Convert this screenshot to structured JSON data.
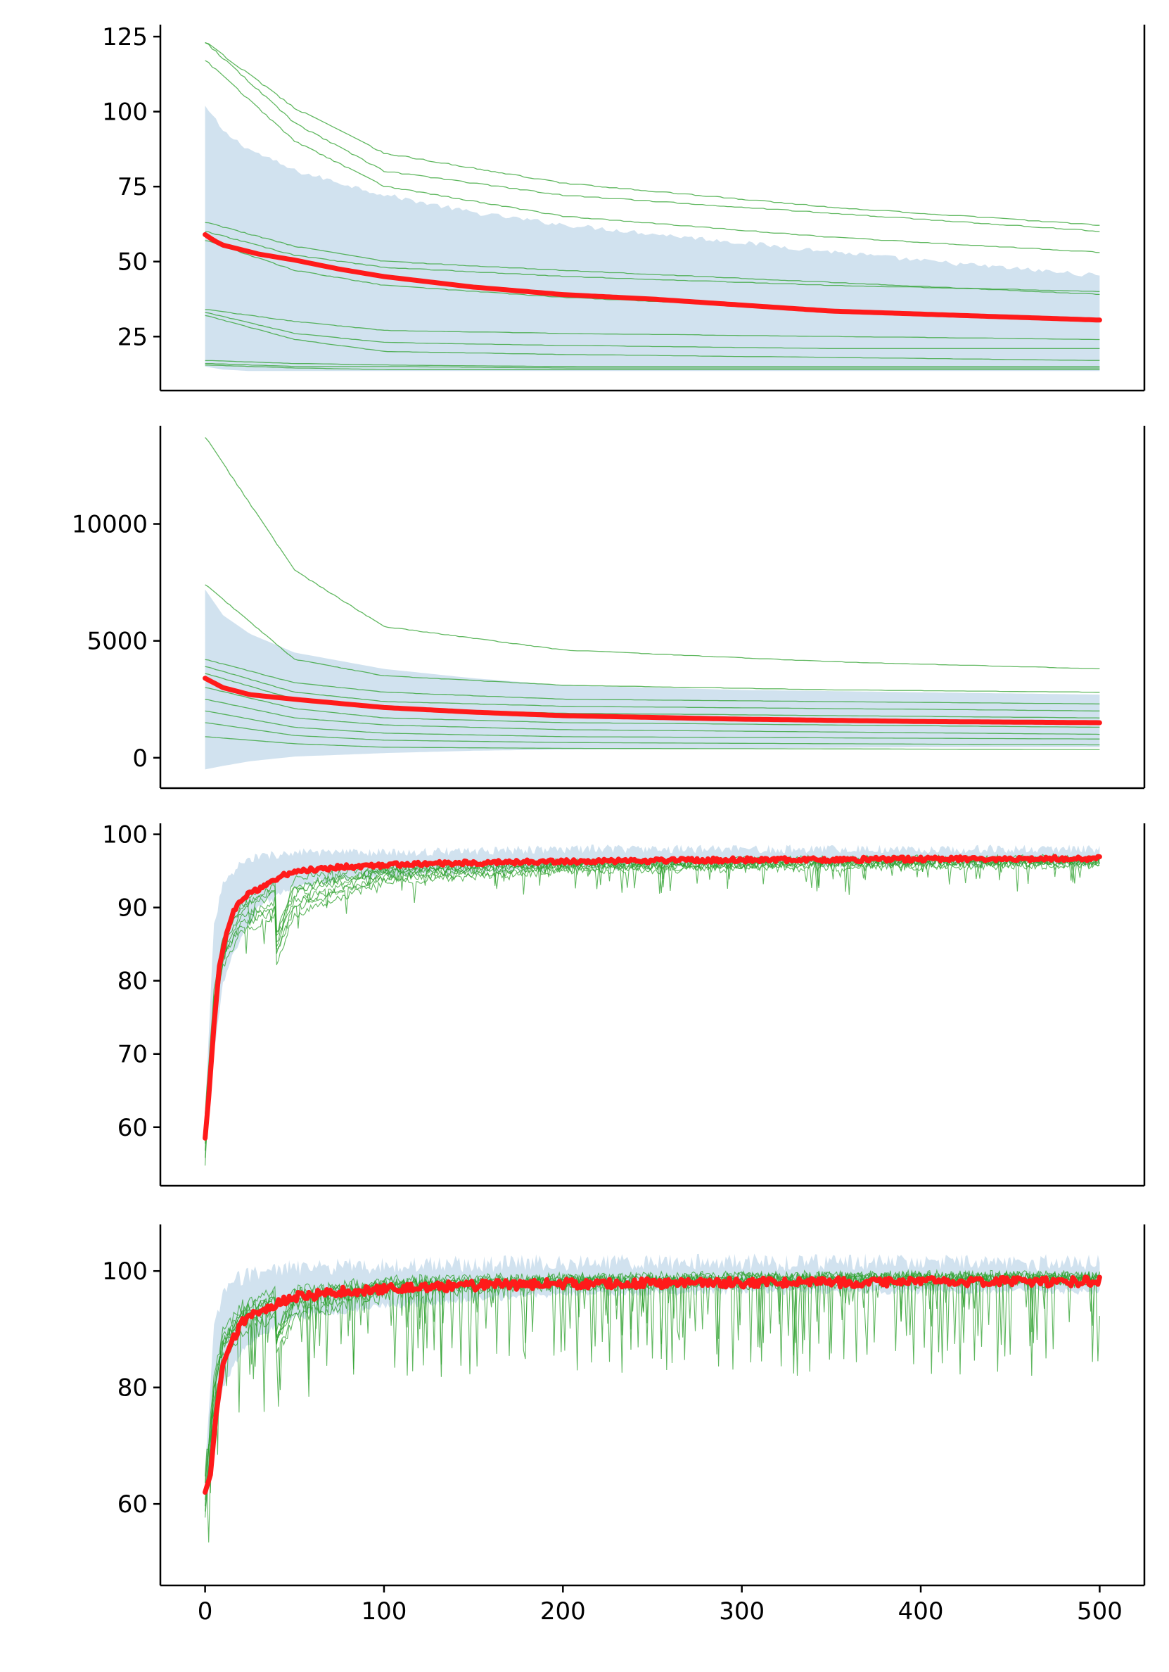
{
  "colors": {
    "mean_line": "#ff1a1a",
    "individual_runs": "#2ca02c",
    "band": "#b9d3e6"
  },
  "x_axis": {
    "ticks": [
      0,
      100,
      200,
      300,
      400,
      500
    ],
    "range": [
      -25,
      525
    ]
  },
  "chart_data": [
    {
      "type": "line",
      "xlim": [
        -25,
        525
      ],
      "ylim": [
        7,
        129
      ],
      "yticks": [
        25,
        50,
        75,
        100,
        125
      ],
      "band": {
        "x": [
          0,
          10,
          25,
          50,
          100,
          150,
          200,
          300,
          400,
          500
        ],
        "lower": [
          15,
          14,
          13.5,
          13.5,
          13.5,
          13.5,
          13.5,
          13.5,
          13.5,
          13.5
        ],
        "upper": [
          102,
          93,
          87,
          80,
          72,
          66,
          62,
          56,
          50,
          45
        ]
      },
      "mean": {
        "x": [
          0,
          5,
          10,
          20,
          30,
          50,
          75,
          100,
          150,
          200,
          250,
          300,
          350,
          400,
          450,
          500
        ],
        "values": [
          59,
          57,
          55.5,
          54,
          52.5,
          50.5,
          47.5,
          45,
          41.5,
          39,
          37.5,
          35.5,
          33.5,
          32.5,
          31.5,
          30.5
        ]
      },
      "runs": [
        {
          "values": [
            123,
            96,
            80,
            72,
            66,
            60
          ]
        },
        {
          "values": [
            123,
            101,
            86,
            76,
            68,
            62
          ]
        },
        {
          "values": [
            117,
            90,
            75,
            65,
            58,
            53
          ]
        },
        {
          "values": [
            63,
            55,
            50,
            47,
            43,
            39
          ]
        },
        {
          "values": [
            60,
            52,
            48,
            45,
            42,
            40
          ]
        },
        {
          "values": [
            57,
            47,
            42,
            38,
            34,
            31
          ]
        },
        {
          "values": [
            34,
            30,
            27,
            26,
            25,
            24
          ]
        },
        {
          "values": [
            33,
            26,
            23,
            22,
            21,
            21
          ]
        },
        {
          "values": [
            32,
            24,
            20,
            19,
            18,
            17
          ]
        },
        {
          "values": [
            17,
            16,
            15.5,
            15,
            15,
            15
          ]
        },
        {
          "values": [
            16,
            15,
            15,
            14.5,
            14.5,
            14.5
          ]
        },
        {
          "values": [
            15.5,
            14.5,
            14,
            14,
            14,
            14
          ]
        }
      ]
    },
    {
      "type": "line",
      "xlim": [
        -25,
        525
      ],
      "ylim": [
        -1300,
        14200
      ],
      "yticks": [
        0,
        5000,
        10000
      ],
      "band": {
        "x": [
          0,
          10,
          25,
          50,
          100,
          150,
          200,
          300,
          400,
          500
        ],
        "lower": [
          -500,
          -350,
          -150,
          50,
          200,
          300,
          350,
          400,
          450,
          450
        ],
        "upper": [
          7200,
          6100,
          5300,
          4500,
          3800,
          3400,
          3100,
          2900,
          2800,
          2700
        ]
      },
      "mean": {
        "x": [
          0,
          10,
          25,
          50,
          100,
          150,
          200,
          300,
          400,
          500
        ],
        "values": [
          3400,
          3000,
          2700,
          2500,
          2150,
          1950,
          1800,
          1650,
          1550,
          1500
        ]
      },
      "runs": [
        {
          "values": [
            13700,
            8000,
            5600,
            4600,
            4100,
            3800
          ]
        },
        {
          "values": [
            7400,
            4200,
            3500,
            3100,
            2900,
            2800
          ]
        },
        {
          "values": [
            4200,
            3200,
            2800,
            2500,
            2400,
            2300
          ]
        },
        {
          "values": [
            3900,
            2800,
            2400,
            2200,
            2100,
            2000
          ]
        },
        {
          "values": [
            3600,
            2500,
            2100,
            1900,
            1800,
            1700
          ]
        },
        {
          "values": [
            3000,
            2100,
            1700,
            1500,
            1400,
            1300
          ]
        },
        {
          "values": [
            2500,
            1700,
            1400,
            1200,
            1100,
            1000
          ]
        },
        {
          "values": [
            2000,
            1300,
            1050,
            900,
            850,
            800
          ]
        },
        {
          "values": [
            1500,
            950,
            750,
            650,
            600,
            550
          ]
        },
        {
          "values": [
            900,
            600,
            450,
            400,
            380,
            350
          ]
        }
      ]
    },
    {
      "type": "line",
      "xlim": [
        -25,
        525
      ],
      "ylim": [
        52,
        101.5
      ],
      "yticks": [
        60,
        70,
        80,
        90,
        100
      ],
      "band": {
        "x": [
          0,
          5,
          10,
          20,
          30,
          50,
          100,
          200,
          300,
          400,
          500
        ],
        "lower": [
          56,
          70,
          80,
          86,
          90,
          93,
          94.5,
          95.5,
          96,
          96,
          96
        ],
        "upper": [
          62,
          88,
          93,
          96,
          97,
          97.5,
          97.5,
          98,
          98,
          98,
          98
        ]
      },
      "mean": {
        "x": [
          0,
          2,
          5,
          8,
          12,
          16,
          20,
          25,
          30,
          40,
          50,
          75,
          100,
          150,
          200,
          300,
          400,
          500
        ],
        "values": [
          58.5,
          64,
          74,
          82,
          86.5,
          89.5,
          91,
          92,
          92.5,
          94,
          95,
          95.5,
          95.8,
          96.1,
          96.3,
          96.5,
          96.6,
          96.7
        ]
      },
      "runs": [
        {
          "values": [
            55,
            94,
            95.5,
            96,
            96.5,
            96.5
          ]
        },
        {
          "values": [
            58,
            93,
            95,
            96,
            96.2,
            96.4
          ]
        },
        {
          "values": [
            60,
            92,
            95,
            95.8,
            96.1,
            96.3
          ]
        },
        {
          "values": [
            61,
            91,
            94.5,
            95.5,
            96,
            96.2
          ]
        },
        {
          "values": [
            59,
            90,
            94,
            95.3,
            95.8,
            96
          ]
        },
        {
          "values": [
            57,
            89,
            93.5,
            95,
            95.5,
            95.8
          ]
        },
        {
          "values": [
            62,
            92.5,
            95.2,
            96.2,
            96.6,
            96.8
          ]
        },
        {
          "values": [
            56,
            90.5,
            94.2,
            95.6,
            96.1,
            96.5
          ]
        }
      ]
    },
    {
      "type": "line",
      "xlim": [
        -25,
        525
      ],
      "ylim": [
        46,
        108
      ],
      "yticks": [
        60,
        80,
        100
      ],
      "band": {
        "x": [
          0,
          5,
          10,
          20,
          30,
          50,
          100,
          200,
          300,
          400,
          500
        ],
        "lower": [
          58,
          70,
          80,
          86,
          89,
          92,
          94,
          96,
          96.5,
          96.5,
          96.5
        ],
        "upper": [
          66,
          90,
          96,
          99,
          100,
          100.5,
          101,
          101.5,
          101.5,
          101.5,
          101.5
        ]
      },
      "mean": {
        "x": [
          0,
          3,
          6,
          10,
          15,
          20,
          30,
          40,
          50,
          75,
          100,
          150,
          200,
          300,
          400,
          500
        ],
        "values": [
          62,
          65,
          75,
          84,
          88,
          91,
          93,
          94.5,
          95.5,
          96.5,
          97,
          97.5,
          97.8,
          98,
          98.1,
          98.2
        ]
      },
      "runs": [
        {
          "values": [
            60,
            96,
            98,
            98.5,
            99,
            99
          ]
        },
        {
          "values": [
            62,
            95,
            97.5,
            98.3,
            98.7,
            98.8
          ]
        },
        {
          "values": [
            64,
            94,
            97,
            98,
            98.5,
            98.6
          ]
        },
        {
          "values": [
            58,
            93,
            96.5,
            97.8,
            98.3,
            98.5
          ]
        },
        {
          "values": [
            61,
            95.5,
            97.8,
            98.4,
            98.8,
            98.9
          ]
        },
        {
          "values": [
            63,
            94.5,
            97.2,
            98.1,
            98.6,
            98.7
          ]
        },
        {
          "values": [
            59,
            92,
            96,
            97.5,
            98,
            98.2
          ]
        },
        {
          "values": [
            65,
            96.5,
            98.2,
            98.7,
            99,
            99.1
          ]
        }
      ]
    }
  ]
}
